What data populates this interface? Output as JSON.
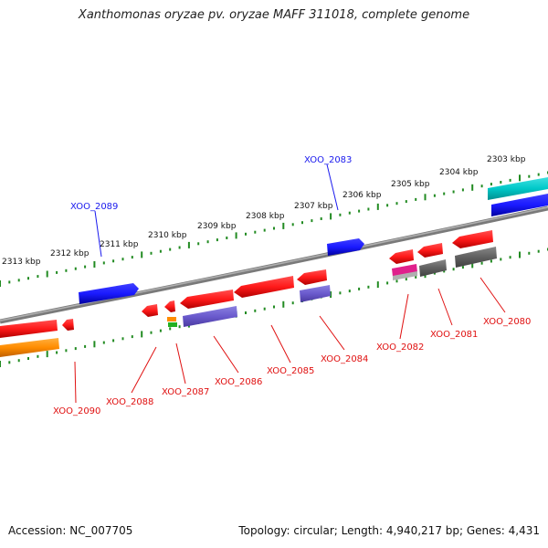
{
  "title": "Xanthomonas oryzae pv. oryzae MAFF 311018, complete genome",
  "footer": {
    "accession": "Accession: NC_007705",
    "stats": "Topology: circular; Length: 4,940,217 bp; Genes: 4,431"
  },
  "scale": {
    "labels": [
      "2303 kbp",
      "2304 kbp",
      "2305 kbp",
      "2306 kbp",
      "2307 kbp",
      "2308 kbp",
      "2309 kbp",
      "2310 kbp",
      "2311 kbp",
      "2312 kbp",
      "2313 kbp"
    ]
  },
  "genes": {
    "upper": [
      {
        "label": "XOO_2083",
        "color": "#1a1aee"
      },
      {
        "label": "XOO_2089",
        "color": "#1a1aee"
      }
    ],
    "lower": [
      {
        "label": "XOO_2080",
        "color": "#e01010"
      },
      {
        "label": "XOO_2081",
        "color": "#e01010"
      },
      {
        "label": "XOO_2082",
        "color": "#e01010"
      },
      {
        "label": "XOO_2084",
        "color": "#e01010"
      },
      {
        "label": "XOO_2085",
        "color": "#e01010"
      },
      {
        "label": "XOO_2086",
        "color": "#e01010"
      },
      {
        "label": "XOO_2087",
        "color": "#e01010"
      },
      {
        "label": "XOO_2088",
        "color": "#e01010"
      },
      {
        "label": "XOO_2090",
        "color": "#e01010"
      }
    ]
  },
  "colors": {
    "cds": "#ff1a1a",
    "forward_cds": "#1a1aff",
    "cog_purple": "#6a5acd",
    "cog_orange": "#ff8c00",
    "cog_cyan": "#00c8c8",
    "cog_gray": "#606060",
    "cog_magenta": "#e0208c",
    "backbone": "#888888",
    "ticks": "#228b22"
  }
}
